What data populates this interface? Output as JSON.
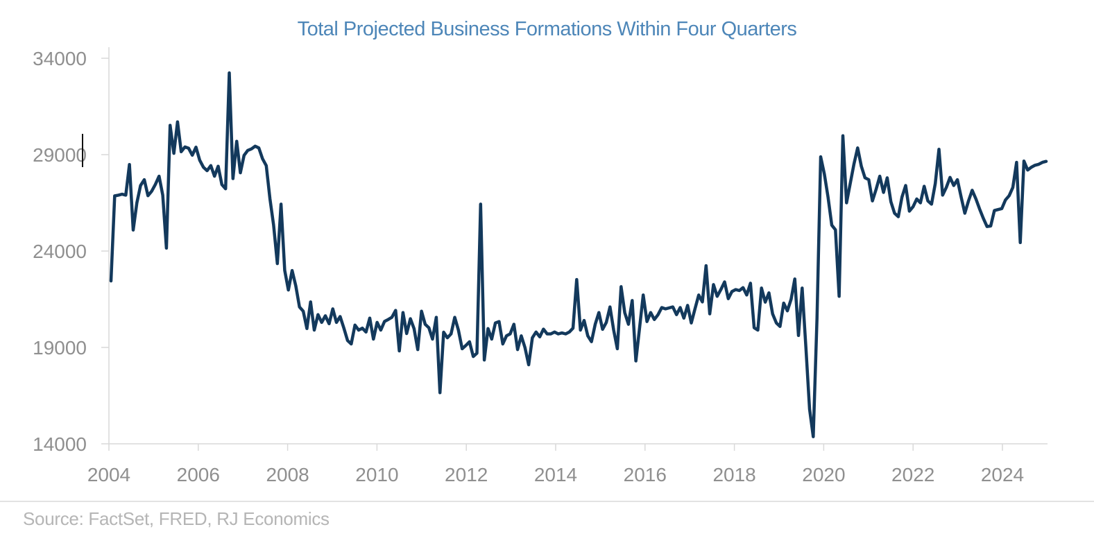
{
  "page": {
    "background": "#ffffff"
  },
  "header": {
    "title": "Total Projected Business Formations Within Four Quarters",
    "title_color": "#4d86b8"
  },
  "footer": {
    "source": "Source: FactSet, FRED, RJ Economics"
  },
  "chart_data": {
    "type": "line",
    "title": "Total Projected Business Formations Within Four Quarters",
    "series_name": "Total projected business formations within four quarters",
    "frequency": "monthly",
    "x_start_year": 2004,
    "x_end": 2025.1,
    "xlabel": "",
    "ylabel": "",
    "ylim": [
      14000,
      34000
    ],
    "y_ticks": [
      34000,
      29000,
      24000,
      19000,
      14000
    ],
    "x_ticks": [
      2004,
      2006,
      2008,
      2010,
      2012,
      2014,
      2016,
      2018,
      2020,
      2022,
      2024
    ],
    "grid": false,
    "legend": "none",
    "line_color": "#13395c",
    "axis_color": "#d9d9d9",
    "tick_label_color": "#8f8f8f",
    "values": [
      22450,
      26860,
      26900,
      26950,
      26900,
      28490,
      25090,
      26500,
      27400,
      27700,
      26870,
      27100,
      27450,
      27880,
      26900,
      24150,
      30520,
      29070,
      30700,
      29150,
      29400,
      29330,
      28970,
      29390,
      28710,
      28350,
      28170,
      28430,
      27880,
      28400,
      27450,
      27230,
      33240,
      27760,
      29690,
      28060,
      28960,
      29220,
      29300,
      29440,
      29350,
      28780,
      28430,
      26720,
      25340,
      23350,
      26430,
      23000,
      21980,
      22990,
      22190,
      21100,
      20880,
      19980,
      21360,
      19900,
      20700,
      20300,
      20640,
      20230,
      21000,
      20300,
      20600,
      20000,
      19360,
      19180,
      20160,
      19900,
      20000,
      19800,
      20520,
      19430,
      20300,
      19900,
      20350,
      20450,
      20560,
      20920,
      18820,
      20810,
      19720,
      20490,
      19970,
      18890,
      20880,
      20200,
      20020,
      19430,
      20560,
      16650,
      19790,
      19500,
      19700,
      20560,
      19900,
      18930,
      19100,
      19290,
      18530,
      18700,
      26430,
      18350,
      19980,
      19430,
      20270,
      20340,
      19180,
      19600,
      19700,
      20200,
      18890,
      19600,
      19000,
      18100,
      19500,
      19800,
      19550,
      19950,
      19700,
      19700,
      19800,
      19700,
      19750,
      19700,
      19800,
      20000,
      22520,
      19900,
      20400,
      19600,
      19300,
      20200,
      20810,
      19940,
      20300,
      21100,
      19900,
      18930,
      22150,
      20800,
      20200,
      21430,
      18300,
      20000,
      21720,
      20340,
      20810,
      20450,
      20700,
      21070,
      21000,
      21050,
      21100,
      20700,
      21070,
      20520,
      21180,
      20270,
      21000,
      21720,
      21360,
      23240,
      20740,
      22260,
      21650,
      22000,
      22400,
      21530,
      21900,
      22000,
      21950,
      22100,
      21720,
      22330,
      20020,
      19900,
      22080,
      21350,
      21830,
      20740,
      20270,
      20090,
      21300,
      20900,
      21500,
      22550,
      19620,
      22080,
      19000,
      15800,
      14370,
      20500,
      28890,
      28000,
      26800,
      25340,
      25100,
      21650,
      29980,
      26500,
      27500,
      28500,
      29350,
      28400,
      27800,
      27700,
      26600,
      27200,
      27880,
      27040,
      27800,
      26560,
      25960,
      25780,
      26800,
      27400,
      26070,
      26300,
      26700,
      26500,
      27360,
      26600,
      26430,
      27500,
      29280,
      26900,
      27300,
      27820,
      27400,
      27700,
      26800,
      25960,
      26600,
      27150,
      26700,
      26180,
      25700,
      25270,
      25300,
      26100,
      26150,
      26200,
      26650,
      26870,
      27300,
      28600,
      24440,
      28670,
      28200,
      28350,
      28450,
      28500,
      28600,
      28650
    ]
  }
}
